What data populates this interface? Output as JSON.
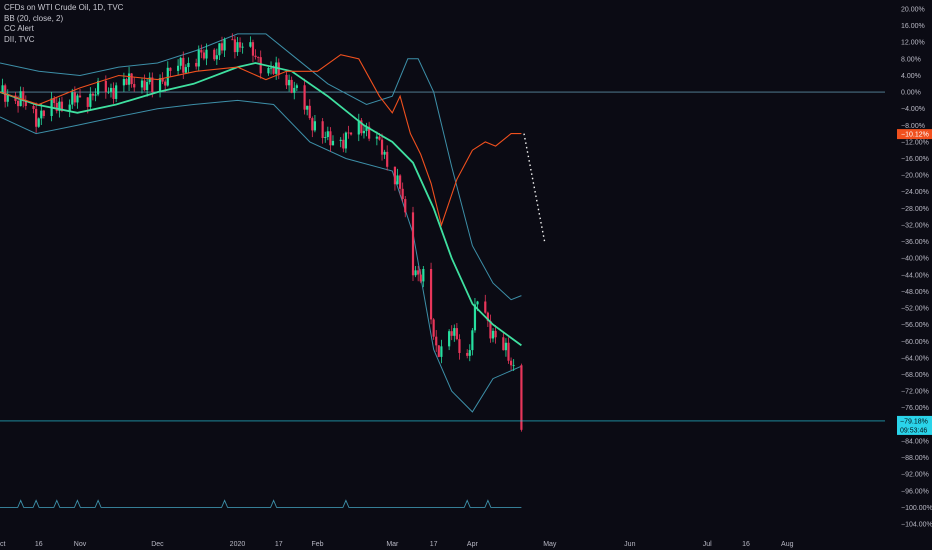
{
  "legend": {
    "symbol": "CFDs on WTI Crude Oil, 1D, TVC",
    "bb": "BB (20, close, 2)",
    "cc": "CC Alert",
    "dii": "DII, TVC"
  },
  "colors": {
    "background": "#0b0b14",
    "candle_up": "#26e0a0",
    "candle_down": "#e8365a",
    "basis": "#3fe0a0",
    "bands": "#3d8fa8",
    "compare": "#f0501e",
    "zero_line": "#5a8aa0",
    "last_price": "#2ad4ea",
    "projection": "#f2f2f2"
  },
  "badges": {
    "compare_value": "−10.12%",
    "last_value": "−79.18%",
    "countdown": "09:53:46"
  },
  "chart_data": {
    "type": "line",
    "title": "CFDs on WTI Crude Oil, 1D, TVC",
    "y_unit": "%",
    "ylim": [
      -104,
      20
    ],
    "grid": false,
    "legend_position": "top-left",
    "yticks": [
      "20.00%",
      "16.00%",
      "12.00%",
      "8.00%",
      "4.00%",
      "0.00%",
      "−4.00%",
      "−8.00%",
      "−12.00%",
      "−16.00%",
      "−20.00%",
      "−24.00%",
      "−28.00%",
      "−32.00%",
      "−36.00%",
      "−40.00%",
      "−44.00%",
      "−48.00%",
      "−52.00%",
      "−56.00%",
      "−60.00%",
      "−64.00%",
      "−68.00%",
      "−72.00%",
      "−76.00%",
      "−80.00%",
      "−84.00%",
      "−88.00%",
      "−92.00%",
      "−96.00%",
      "−100.00%",
      "−104.00%"
    ],
    "ytick_values": [
      20,
      16,
      12,
      8,
      4,
      0,
      -4,
      -8,
      -12,
      -16,
      -20,
      -24,
      -28,
      -32,
      -36,
      -40,
      -44,
      -48,
      -52,
      -56,
      -60,
      -64,
      -68,
      -72,
      -76,
      -80,
      -84,
      -88,
      -92,
      -96,
      -100,
      -104
    ],
    "xaxis": {
      "start": "2019-10-01",
      "end": "2020-08-16",
      "ticks": [
        {
          "label": "Oct",
          "date": "2019-10-01"
        },
        {
          "label": "16",
          "date": "2019-10-16"
        },
        {
          "label": "Nov",
          "date": "2019-11-01"
        },
        {
          "label": "Dec",
          "date": "2019-12-01"
        },
        {
          "label": "2020",
          "date": "2020-01-01"
        },
        {
          "label": "17",
          "date": "2020-01-17"
        },
        {
          "label": "Feb",
          "date": "2020-02-01"
        },
        {
          "label": "Mar",
          "date": "2020-03-01"
        },
        {
          "label": "17",
          "date": "2020-03-17"
        },
        {
          "label": "Apr",
          "date": "2020-04-01"
        },
        {
          "label": "May",
          "date": "2020-05-01"
        },
        {
          "label": "Jun",
          "date": "2020-06-01"
        },
        {
          "label": "Jul",
          "date": "2020-07-01"
        },
        {
          "label": "16",
          "date": "2020-07-16"
        },
        {
          "label": "Aug",
          "date": "2020-08-01"
        }
      ]
    },
    "series": [
      {
        "name": "CFDs on WTI Crude Oil",
        "points": [
          [
            "2019-10-01",
            0
          ],
          [
            "2019-10-09",
            -2
          ],
          [
            "2019-10-15",
            -6
          ],
          [
            "2019-10-23",
            -3
          ],
          [
            "2019-10-31",
            -2
          ],
          [
            "2019-11-08",
            0
          ],
          [
            "2019-11-15",
            1
          ],
          [
            "2019-11-22",
            3
          ],
          [
            "2019-11-29",
            1
          ],
          [
            "2019-12-06",
            5
          ],
          [
            "2019-12-13",
            7
          ],
          [
            "2019-12-20",
            9
          ],
          [
            "2019-12-27",
            11
          ],
          [
            "2020-01-03",
            12
          ],
          [
            "2020-01-08",
            8
          ],
          [
            "2020-01-15",
            5
          ],
          [
            "2020-01-22",
            2
          ],
          [
            "2020-01-29",
            -6
          ],
          [
            "2020-02-05",
            -12
          ],
          [
            "2020-02-12",
            -11
          ],
          [
            "2020-02-19",
            -8
          ],
          [
            "2020-02-26",
            -14
          ],
          [
            "2020-03-04",
            -23
          ],
          [
            "2020-03-09",
            -42
          ],
          [
            "2020-03-13",
            -45
          ],
          [
            "2020-03-18",
            -62
          ],
          [
            "2020-03-24",
            -58
          ],
          [
            "2020-03-30",
            -64
          ],
          [
            "2020-04-03",
            -50
          ],
          [
            "2020-04-09",
            -58
          ],
          [
            "2020-04-14",
            -63
          ],
          [
            "2020-04-17",
            -66
          ],
          [
            "2020-04-20",
            -79
          ]
        ]
      },
      {
        "name": "BB basis",
        "points": [
          [
            "2019-10-01",
            0
          ],
          [
            "2019-10-15",
            -3
          ],
          [
            "2019-10-31",
            -5
          ],
          [
            "2019-11-15",
            -3
          ],
          [
            "2019-12-01",
            0
          ],
          [
            "2019-12-15",
            2
          ],
          [
            "2020-01-01",
            6
          ],
          [
            "2020-01-08",
            7
          ],
          [
            "2020-01-22",
            5
          ],
          [
            "2020-02-05",
            -1
          ],
          [
            "2020-02-19",
            -8
          ],
          [
            "2020-03-01",
            -12
          ],
          [
            "2020-03-09",
            -17
          ],
          [
            "2020-03-17",
            -28
          ],
          [
            "2020-03-24",
            -40
          ],
          [
            "2020-04-01",
            -51
          ],
          [
            "2020-04-09",
            -56
          ],
          [
            "2020-04-20",
            -61
          ]
        ]
      },
      {
        "name": "BB upper",
        "points": [
          [
            "2019-10-01",
            7
          ],
          [
            "2019-10-16",
            5
          ],
          [
            "2019-11-01",
            4
          ],
          [
            "2019-11-16",
            6
          ],
          [
            "2019-12-01",
            7
          ],
          [
            "2019-12-16",
            10
          ],
          [
            "2020-01-01",
            14
          ],
          [
            "2020-01-12",
            14
          ],
          [
            "2020-01-24",
            8
          ],
          [
            "2020-02-05",
            2
          ],
          [
            "2020-02-20",
            -3
          ],
          [
            "2020-03-01",
            -1
          ],
          [
            "2020-03-07",
            8
          ],
          [
            "2020-03-11",
            8
          ],
          [
            "2020-03-17",
            0
          ],
          [
            "2020-03-24",
            -18
          ],
          [
            "2020-04-01",
            -37
          ],
          [
            "2020-04-09",
            -46
          ],
          [
            "2020-04-16",
            -50
          ],
          [
            "2020-04-20",
            -49
          ]
        ]
      },
      {
        "name": "BB lower",
        "points": [
          [
            "2019-10-01",
            -6
          ],
          [
            "2019-10-15",
            -10
          ],
          [
            "2019-10-31",
            -8
          ],
          [
            "2019-11-15",
            -6
          ],
          [
            "2019-12-01",
            -4
          ],
          [
            "2019-12-15",
            -3
          ],
          [
            "2020-01-01",
            -2
          ],
          [
            "2020-01-15",
            -3
          ],
          [
            "2020-01-29",
            -12
          ],
          [
            "2020-02-12",
            -16
          ],
          [
            "2020-03-01",
            -19
          ],
          [
            "2020-03-09",
            -34
          ],
          [
            "2020-03-17",
            -62
          ],
          [
            "2020-03-24",
            -72
          ],
          [
            "2020-04-01",
            -77
          ],
          [
            "2020-04-09",
            -69
          ],
          [
            "2020-04-20",
            -66
          ]
        ]
      },
      {
        "name": "DII, TVC",
        "points": [
          [
            "2019-10-01",
            0
          ],
          [
            "2019-10-16",
            -3
          ],
          [
            "2019-11-01",
            1
          ],
          [
            "2019-11-16",
            4
          ],
          [
            "2019-12-01",
            3
          ],
          [
            "2019-12-16",
            5
          ],
          [
            "2020-01-01",
            6
          ],
          [
            "2020-01-12",
            3
          ],
          [
            "2020-01-20",
            5
          ],
          [
            "2020-02-01",
            5
          ],
          [
            "2020-02-10",
            9
          ],
          [
            "2020-02-17",
            8
          ],
          [
            "2020-02-25",
            -1
          ],
          [
            "2020-03-01",
            -5
          ],
          [
            "2020-03-04",
            -1
          ],
          [
            "2020-03-08",
            -10
          ],
          [
            "2020-03-12",
            -15
          ],
          [
            "2020-03-16",
            -22
          ],
          [
            "2020-03-20",
            -32
          ],
          [
            "2020-03-26",
            -21
          ],
          [
            "2020-04-01",
            -14
          ],
          [
            "2020-04-06",
            -12
          ],
          [
            "2020-04-10",
            -13
          ],
          [
            "2020-04-16",
            -10
          ],
          [
            "2020-04-20",
            -10
          ]
        ]
      },
      {
        "name": "Projection",
        "points": [
          [
            "2020-04-21",
            -10
          ],
          [
            "2020-04-29",
            -36
          ]
        ]
      }
    ],
    "last_price": -79.18,
    "compare_last": -10.12,
    "alerts": {
      "baseline": -100,
      "dates": [
        "2019-10-09",
        "2019-10-15",
        "2019-10-23",
        "2019-10-31",
        "2019-11-08",
        "2019-12-27",
        "2020-01-15",
        "2020-02-12",
        "2020-03-30",
        "2020-04-07"
      ]
    }
  }
}
